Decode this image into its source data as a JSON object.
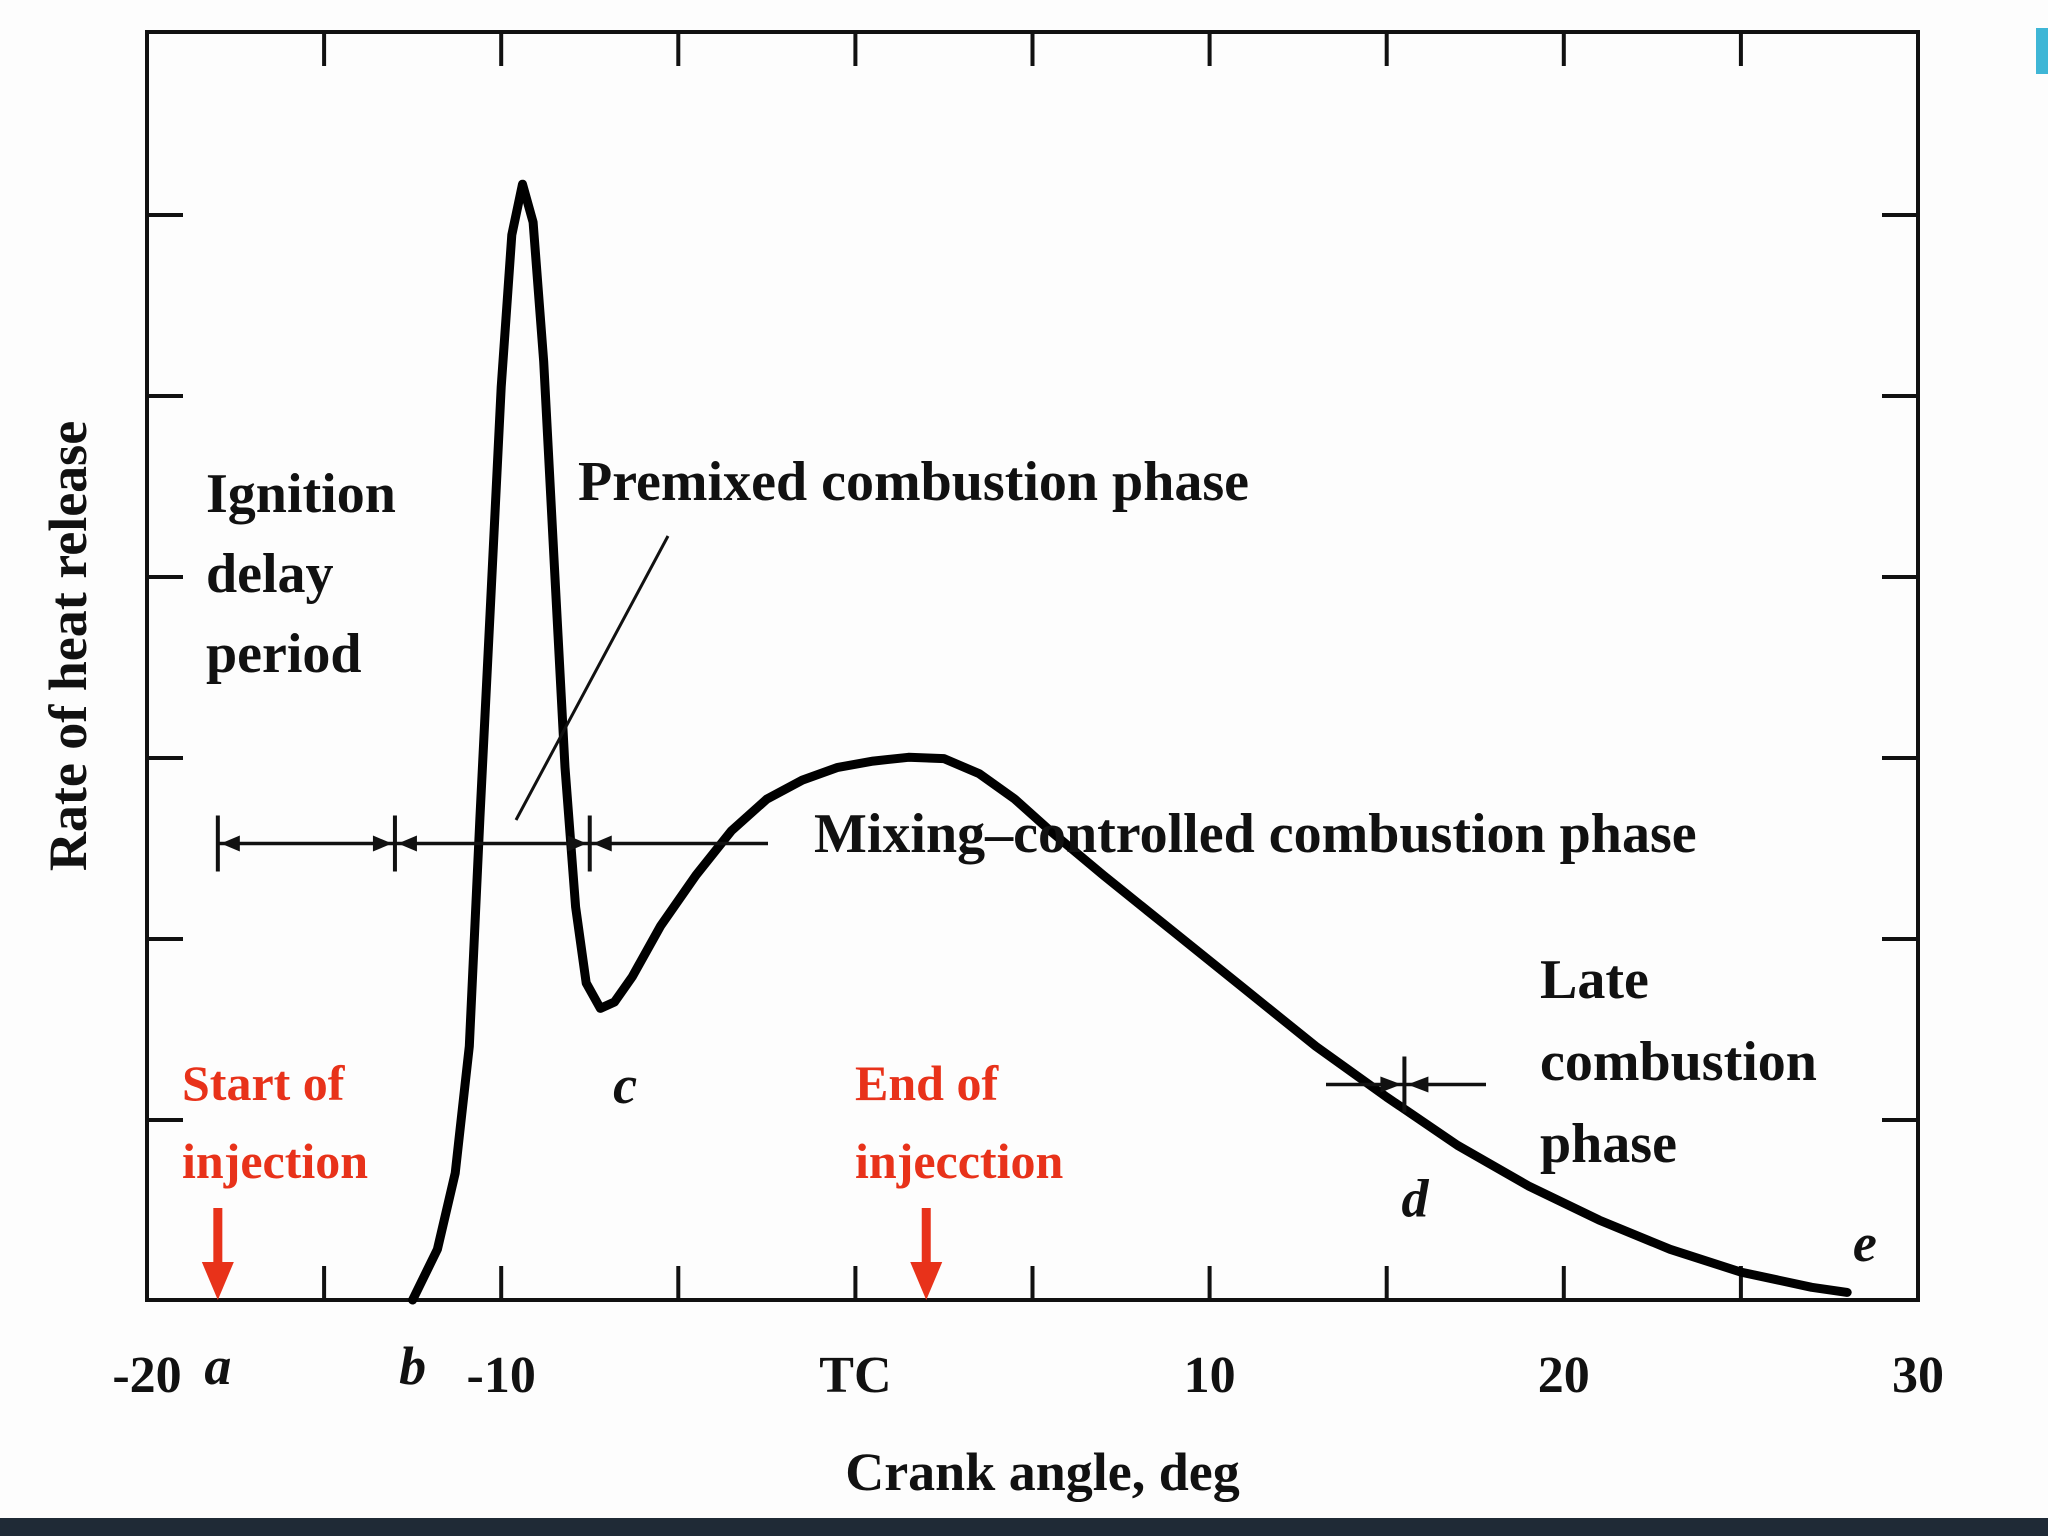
{
  "chart_data": {
    "type": "line",
    "xlabel": "Crank angle, deg",
    "ylabel": "Rate of heat release",
    "xlim": [
      -20,
      30
    ],
    "ylim": [
      0,
      1
    ],
    "grid": false,
    "x_ticks": [
      {
        "value": -20,
        "label": "-20"
      },
      {
        "value": -10,
        "label": "-10"
      },
      {
        "value": 0,
        "label": "TC"
      },
      {
        "value": 10,
        "label": "10"
      },
      {
        "value": 20,
        "label": "20"
      },
      {
        "value": 30,
        "label": "30"
      }
    ],
    "series": [
      {
        "x": [
          -12.5,
          -11.8,
          -11.3,
          -10.9,
          -10.6,
          -10.3,
          -10.0,
          -9.7,
          -9.4,
          -9.1,
          -8.8,
          -8.5,
          -8.2,
          -7.9,
          -7.6,
          -7.2,
          -6.8,
          -6.3,
          -5.5,
          -4.5,
          -3.5,
          -2.5,
          -1.5,
          -0.5,
          0.5,
          1.5,
          2.5,
          3.5,
          4.5,
          5.5,
          7,
          9,
          11,
          13,
          15,
          17,
          19,
          21,
          23,
          25,
          27,
          28
        ],
        "y": [
          0.0,
          0.04,
          0.1,
          0.2,
          0.38,
          0.55,
          0.72,
          0.84,
          0.88,
          0.85,
          0.74,
          0.58,
          0.42,
          0.31,
          0.25,
          0.23,
          0.235,
          0.255,
          0.295,
          0.335,
          0.37,
          0.395,
          0.41,
          0.42,
          0.425,
          0.428,
          0.427,
          0.415,
          0.395,
          0.37,
          0.335,
          0.29,
          0.245,
          0.2,
          0.16,
          0.122,
          0.09,
          0.063,
          0.04,
          0.022,
          0.01,
          0.006
        ]
      }
    ],
    "point_labels": [
      {
        "label": "a",
        "x": -18
      },
      {
        "label": "b",
        "x": -12.5
      },
      {
        "label": "c",
        "x": -6.5,
        "y": 0.16
      },
      {
        "label": "d",
        "x": 15.8,
        "y": 0.05
      },
      {
        "label": "e",
        "x": 28.5,
        "y": 0.015
      }
    ],
    "annotations": {
      "ignition_delay": [
        "Ignition",
        "delay",
        "period"
      ],
      "premixed": "Premixed combustion phase",
      "mixing": "Mixing–controlled combustion phase",
      "late": [
        "Late",
        "combustion",
        "phase"
      ],
      "start_injection": [
        "Start of",
        "injection"
      ],
      "end_injection": [
        "End of",
        "injecction"
      ]
    },
    "start_injection_x": -18,
    "end_injection_x": 2,
    "phase_bar_y": 0.36,
    "phase_bar_markers": [
      -18,
      -13,
      -7.5
    ],
    "late_marker_x": 15.5,
    "late_bar_y": 0.17,
    "colors": {
      "curve": "#000000",
      "injection": "#e8321a"
    }
  }
}
